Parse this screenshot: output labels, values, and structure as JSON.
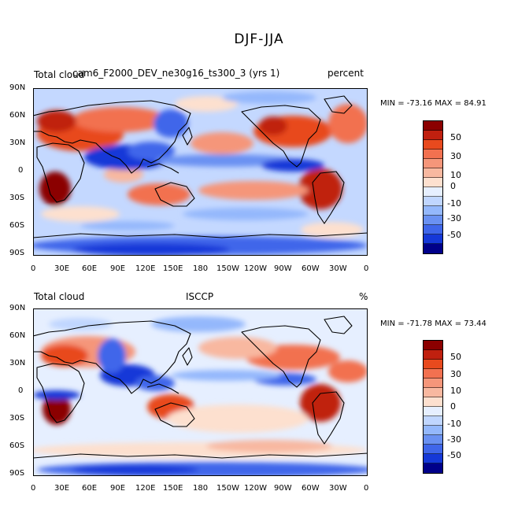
{
  "figure_title": "DJF-JJA",
  "panels": [
    {
      "left_label": "Total cloud",
      "center_label": "cam6_F2000_DEV_ne30g16_ts300_3 (yrs 1)",
      "right_label": "percent",
      "min_max": "MIN = -73.16 MAX =  84.91"
    },
    {
      "left_label": "Total cloud",
      "center_label": "ISCCP",
      "right_label": "%",
      "min_max": "MIN = -71.78 MAX =  73.44"
    }
  ],
  "lat_labels": [
    "90N",
    "60N",
    "30N",
    "0",
    "30S",
    "60S",
    "90S"
  ],
  "lon_labels": [
    "0",
    "30E",
    "60E",
    "90E",
    "120E",
    "150E",
    "180",
    "150W",
    "120W",
    "90W",
    "60W",
    "30W",
    "0"
  ],
  "colorbar": {
    "colors": [
      "#8b0000",
      "#c0200f",
      "#e84a1e",
      "#f27150",
      "#f5967a",
      "#f8b8a0",
      "#fde0cf",
      "#e6efff",
      "#c0d6ff",
      "#94b8fc",
      "#6a91f2",
      "#3f66ea",
      "#1538d8",
      "#00008a"
    ],
    "labels": [
      "50",
      "30",
      "10",
      "0",
      "-10",
      "-30",
      "-50"
    ]
  },
  "chart_data": {
    "type": "contour-map",
    "variable": "Total cloud",
    "units": "percent",
    "season_difference": "DJF-JJA",
    "contour_levels": [
      -70,
      -60,
      -50,
      -40,
      -30,
      -20,
      -10,
      0,
      10,
      20,
      30,
      40,
      50,
      60,
      70
    ],
    "lat_range": [
      -90,
      90
    ],
    "lon_range": [
      0,
      360
    ],
    "panels": [
      {
        "dataset": "cam6_F2000_DEV_ne30g16_ts300_3 (yrs 1)",
        "min": -73.16,
        "max": 84.91
      },
      {
        "dataset": "ISCCP",
        "min": -71.78,
        "max": 73.44
      }
    ]
  }
}
